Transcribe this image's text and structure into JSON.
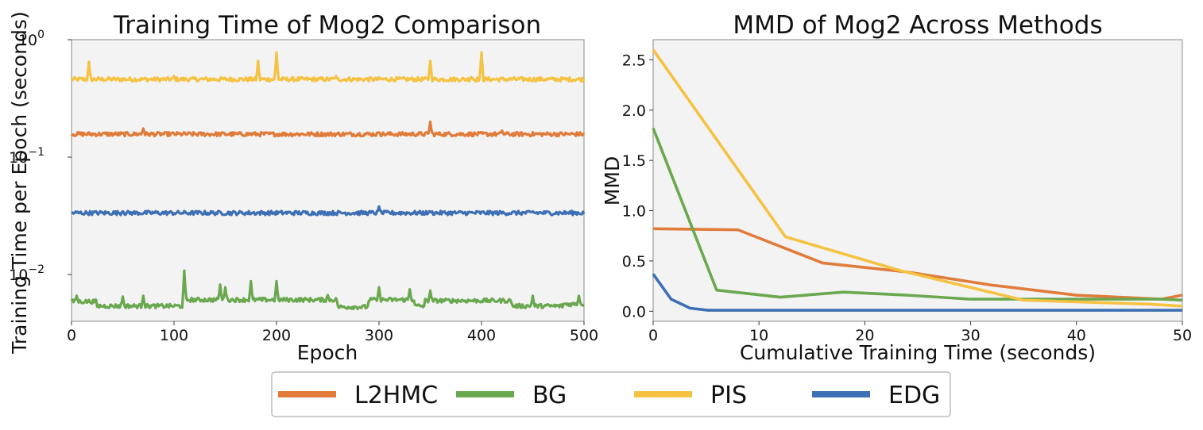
{
  "colors": {
    "L2HMC": "#e07b39",
    "BG": "#6aa84f",
    "PIS": "#f5c242",
    "EDG": "#3d6fb5",
    "plot_bg": "#f3f3f3",
    "frame": "#888888"
  },
  "legend": {
    "items": [
      {
        "label": "L2HMC",
        "color": "#e07b39"
      },
      {
        "label": "BG",
        "color": "#6aa84f"
      },
      {
        "label": "PIS",
        "color": "#f5c242"
      },
      {
        "label": "EDG",
        "color": "#3d6fb5"
      }
    ]
  },
  "chart_data": [
    {
      "type": "line",
      "title": "Training Time of Mog2 Comparison",
      "xlabel": "Epoch",
      "ylabel": "Training Time per Epoch (seconds)",
      "xlim": [
        0,
        500
      ],
      "yscale": "log",
      "ylim": [
        0.004,
        1.0
      ],
      "xticks": [
        0,
        100,
        200,
        300,
        400,
        500
      ],
      "xtick_labels": [
        "0",
        "100",
        "200",
        "300",
        "400",
        "500"
      ],
      "yticks": [
        1.0,
        0.1,
        0.01
      ],
      "ytick_base": "10",
      "ytick_exps": [
        "0",
        "−1",
        "−2"
      ],
      "series": [
        {
          "name": "PIS",
          "base": 0.46,
          "spikes": [
            [
              17,
              0.65
            ],
            [
              182,
              0.66
            ],
            [
              200,
              0.78
            ],
            [
              350,
              0.66
            ],
            [
              400,
              0.78
            ],
            [
              258,
              0.49
            ],
            [
              100,
              0.49
            ],
            [
              390,
              0.48
            ]
          ]
        },
        {
          "name": "L2HMC",
          "base": 0.157,
          "spikes": [
            [
              70,
              0.175
            ],
            [
              350,
              0.2
            ],
            [
              420,
              0.168
            ],
            [
              300,
              0.162
            ]
          ]
        },
        {
          "name": "EDG",
          "base": 0.0335,
          "spikes": [
            [
              300,
              0.038
            ],
            [
              50,
              0.0345
            ],
            [
              350,
              0.0345
            ],
            [
              450,
              0.0345
            ]
          ]
        },
        {
          "name": "BG",
          "base": 0.0058,
          "spikes": [
            [
              5,
              0.0066
            ],
            [
              50,
              0.0065
            ],
            [
              70,
              0.0066
            ],
            [
              110,
              0.0108
            ],
            [
              145,
              0.0082
            ],
            [
              150,
              0.0078
            ],
            [
              175,
              0.0088
            ],
            [
              200,
              0.0088
            ],
            [
              250,
              0.0067
            ],
            [
              300,
              0.0078
            ],
            [
              330,
              0.0075
            ],
            [
              350,
              0.0073
            ],
            [
              450,
              0.0066
            ],
            [
              495,
              0.0066
            ]
          ],
          "steps": [
            [
              0,
              0.0059
            ],
            [
              25,
              0.0054
            ],
            [
              110,
              0.0061
            ],
            [
              260,
              0.0053
            ],
            [
              290,
              0.0061
            ],
            [
              335,
              0.0054
            ],
            [
              345,
              0.006
            ],
            [
              430,
              0.0054
            ],
            [
              480,
              0.0056
            ]
          ]
        }
      ]
    },
    {
      "type": "line",
      "title": "MMD of Mog2 Across Methods",
      "xlabel": "Cumulative Training Time (seconds)",
      "ylabel": "MMD",
      "xlim": [
        0,
        50
      ],
      "ylim": [
        -0.1,
        2.7
      ],
      "xticks": [
        0,
        10,
        20,
        30,
        40,
        50
      ],
      "xtick_labels": [
        "0",
        "10",
        "20",
        "30",
        "40",
        "50"
      ],
      "yticks": [
        0.0,
        0.5,
        1.0,
        1.5,
        2.0,
        2.5
      ],
      "ytick_labels": [
        "0.0",
        "0.5",
        "1.0",
        "1.5",
        "2.0",
        "2.5"
      ],
      "series": [
        {
          "name": "L2HMC",
          "x": [
            0,
            8,
            16,
            24,
            32,
            40,
            48,
            50
          ],
          "y": [
            0.82,
            0.81,
            0.48,
            0.39,
            0.26,
            0.16,
            0.12,
            0.16
          ]
        },
        {
          "name": "BG",
          "x": [
            0,
            6,
            12,
            18,
            24,
            30,
            36,
            42,
            48,
            50
          ],
          "y": [
            1.82,
            0.21,
            0.14,
            0.19,
            0.16,
            0.12,
            0.12,
            0.12,
            0.12,
            0.11
          ]
        },
        {
          "name": "PIS",
          "x": [
            0,
            12.5,
            23.5,
            35,
            47,
            50
          ],
          "y": [
            2.6,
            0.74,
            0.4,
            0.11,
            0.07,
            0.05
          ]
        },
        {
          "name": "EDG",
          "x": [
            0,
            1.7,
            3.5,
            5.2,
            7,
            50
          ],
          "y": [
            0.37,
            0.12,
            0.03,
            0.01,
            0.01,
            0.01
          ]
        }
      ]
    }
  ]
}
